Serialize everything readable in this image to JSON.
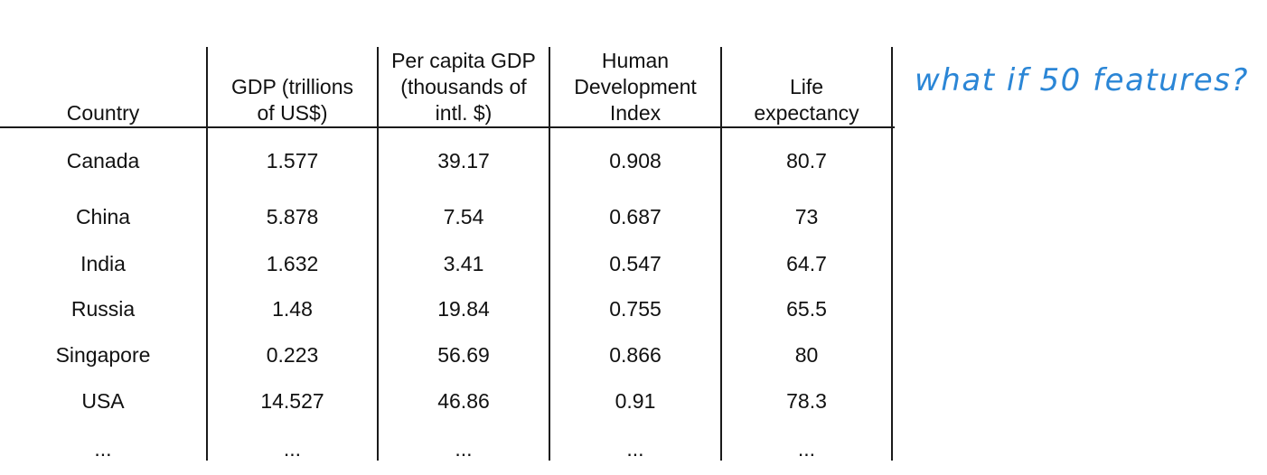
{
  "table": {
    "headers": [
      "Country",
      "GDP (trillions\nof US$)",
      "Per capita GDP\n(thousands of\nintl. $)",
      "Human\nDevelopment\nIndex",
      "Life\nexpectancy"
    ],
    "rows": [
      [
        "Canada",
        "1.577",
        "39.17",
        "0.908",
        "80.7"
      ],
      [
        "China",
        "5.878",
        "7.54",
        "0.687",
        "73"
      ],
      [
        "India",
        "1.632",
        "3.41",
        "0.547",
        "64.7"
      ],
      [
        "Russia",
        "1.48",
        "19.84",
        "0.755",
        "65.5"
      ],
      [
        "Singapore",
        "0.223",
        "56.69",
        "0.866",
        "80"
      ],
      [
        "USA",
        "14.527",
        "46.86",
        "0.91",
        "78.3"
      ],
      [
        "...",
        "...",
        "...",
        "...",
        "..."
      ]
    ]
  },
  "annotation": {
    "text": "what if 50 features?",
    "color": "#2b86d6"
  }
}
